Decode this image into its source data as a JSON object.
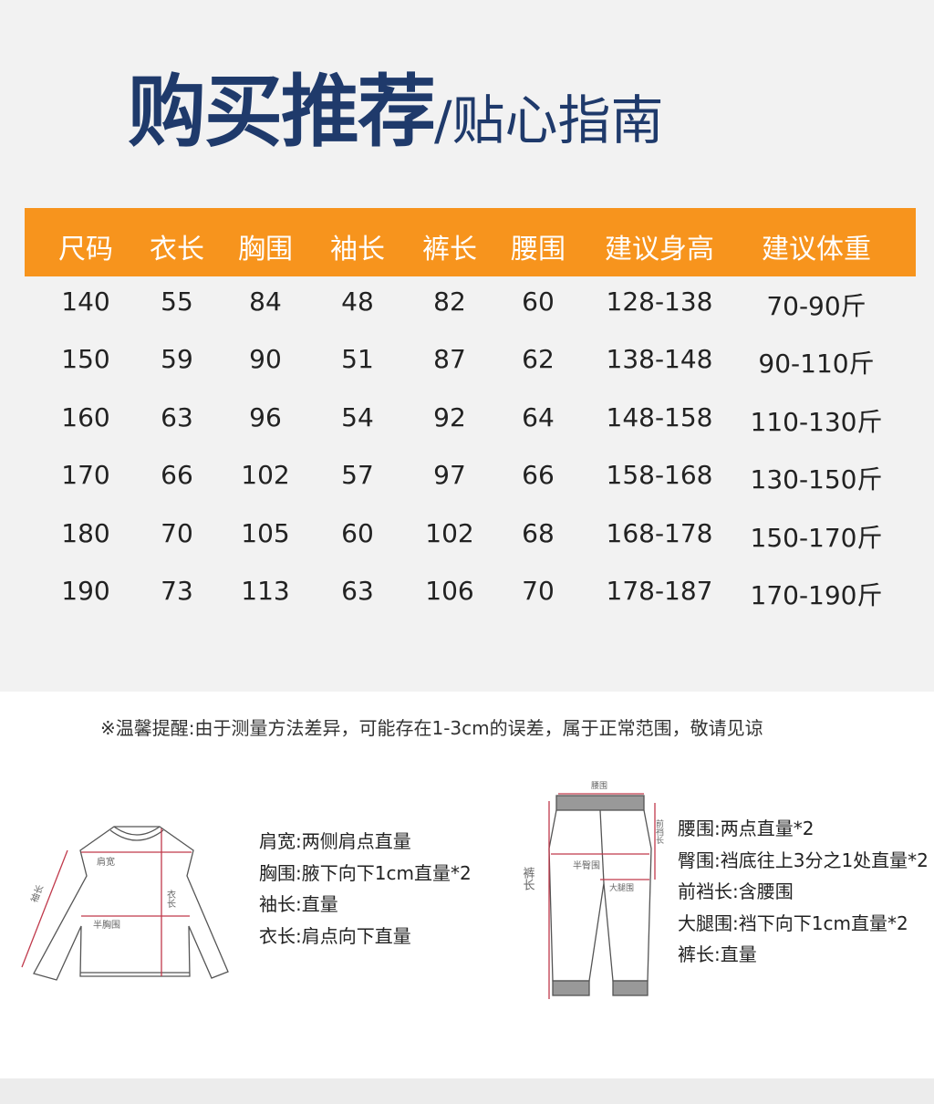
{
  "title": {
    "main": "购买推荐",
    "sub": "/贴心指南"
  },
  "colors": {
    "header_bg": "#f7941d",
    "title": "#1f3a6b",
    "measure_line": "#c0394b"
  },
  "table": {
    "headers": [
      "尺码",
      "衣长",
      "胸围",
      "袖长",
      "裤长",
      "腰围",
      "建议身高",
      "建议体重"
    ],
    "rows": [
      [
        "140",
        "55",
        "84",
        "48",
        "82",
        "60",
        "128-138",
        "70-90斤"
      ],
      [
        "150",
        "59",
        "90",
        "51",
        "87",
        "62",
        "138-148",
        "90-110斤"
      ],
      [
        "160",
        "63",
        "96",
        "54",
        "92",
        "64",
        "148-158",
        "110-130斤"
      ],
      [
        "170",
        "66",
        "102",
        "57",
        "97",
        "66",
        "158-168",
        "130-150斤"
      ],
      [
        "180",
        "70",
        "105",
        "60",
        "102",
        "68",
        "168-178",
        "150-170斤"
      ],
      [
        "190",
        "73",
        "113",
        "63",
        "106",
        "70",
        "178-187",
        "170-190斤"
      ]
    ]
  },
  "note": "※温馨提醒:由于测量方法差异，可能存在1-3cm的误差，属于正常范围，敬请见谅",
  "top_diagram": {
    "labels": {
      "shoulder": "肩宽",
      "length": "衣长",
      "half_chest": "半胸围",
      "sleeve": "袖长"
    },
    "instructions": [
      "肩宽:两侧肩点直量",
      "胸围:腋下向下1cm直量*2",
      "袖长:直量",
      "衣长:肩点向下直量"
    ]
  },
  "pants_diagram": {
    "labels": {
      "waist": "腰围",
      "half_hip": "半臀围",
      "thigh": "大腿围",
      "length": "裤长",
      "rise": "前裆长"
    },
    "instructions": [
      "腰围:两点直量*2",
      "臀围:裆底往上3分之1处直量*2",
      "前裆长:含腰围",
      "大腿围:裆下向下1cm直量*2",
      "裤长:直量"
    ]
  }
}
